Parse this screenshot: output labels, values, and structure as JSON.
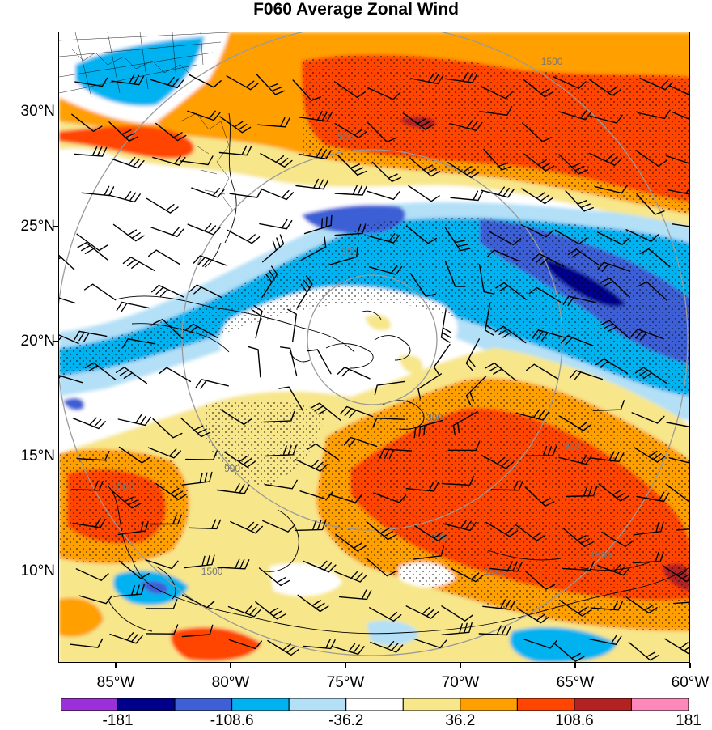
{
  "title": "F060 Average Zonal Wind",
  "lat_axis": [
    {
      "label": "30°N",
      "lat": 30
    },
    {
      "label": "25°N",
      "lat": 25
    },
    {
      "label": "20°N",
      "lat": 20
    },
    {
      "label": "15°N",
      "lat": 15
    },
    {
      "label": "10°N",
      "lat": 10
    }
  ],
  "lon_axis": [
    {
      "label": "85°W",
      "lon": -85
    },
    {
      "label": "80°W",
      "lon": -80
    },
    {
      "label": "75°W",
      "lon": -75
    },
    {
      "label": "70°W",
      "lon": -70
    },
    {
      "label": "65°W",
      "lon": -65
    },
    {
      "label": "60°W",
      "lon": -60
    }
  ],
  "range_rings": [
    {
      "label": "300"
    },
    {
      "label": "900"
    },
    {
      "label": "1500"
    }
  ],
  "colorbar": {
    "colors": [
      "#9b30d9",
      "#00008b",
      "#3e5fd6",
      "#00b2f0",
      "#b3e0f7",
      "#ffffff",
      "#f7e68a",
      "#ff9f00",
      "#ff4500",
      "#b22222",
      "#ff88bb"
    ],
    "labels": [
      "-181",
      "-108.6",
      "-36.2",
      "36.2",
      "108.6",
      "181"
    ]
  },
  "map": {
    "lon_min": -87.5,
    "lon_max": -60,
    "lat_min": 6,
    "lat_max": 33.5,
    "center_lon": -73.8,
    "center_lat": 20.8,
    "features": [
      "state-borders",
      "coastlines",
      "stippling",
      "wind-barbs",
      "range-rings"
    ]
  }
}
